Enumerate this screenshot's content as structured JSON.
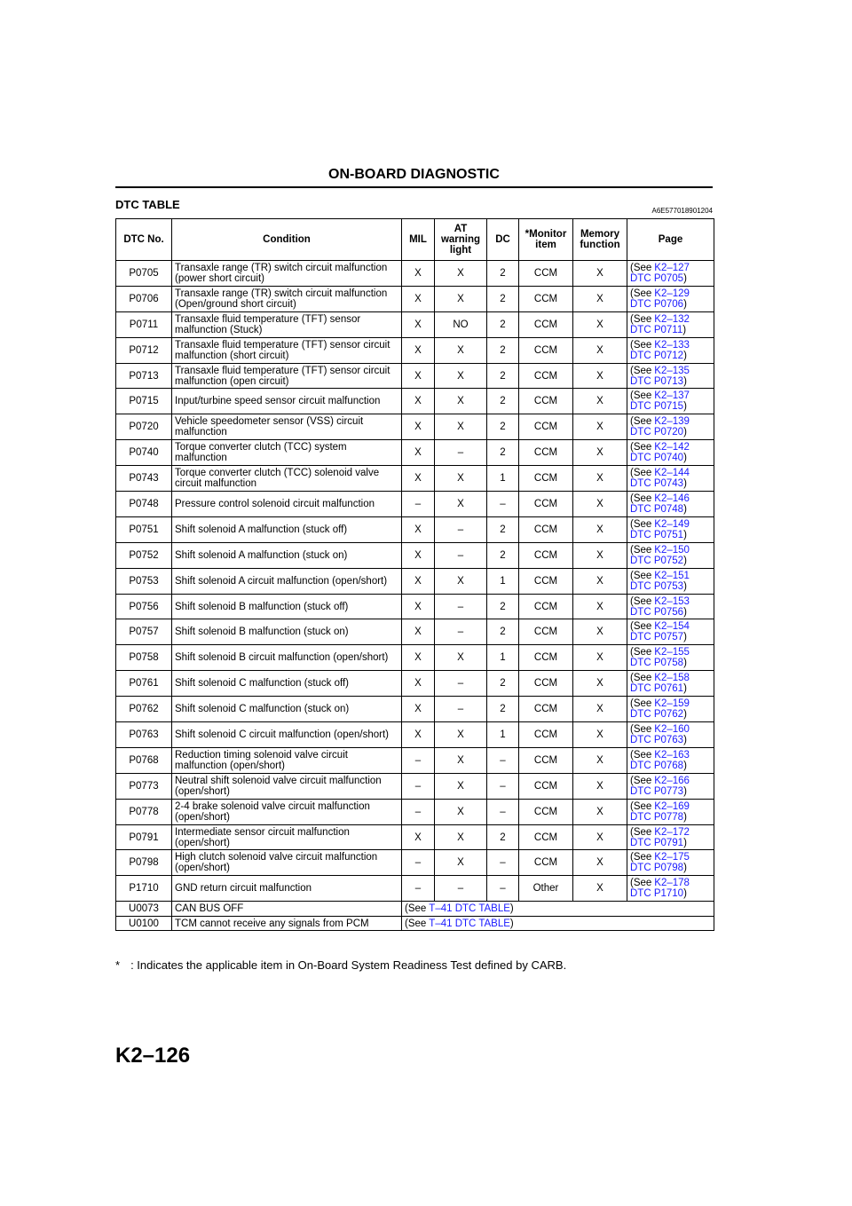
{
  "header": {
    "title": "ON-BOARD DIAGNOSTIC"
  },
  "section": {
    "title": "DTC TABLE",
    "code": "A6E577018901204"
  },
  "table": {
    "columns": [
      "DTC No.",
      "Condition",
      "MIL",
      "AT warning light",
      "DC",
      "*Monitor item",
      "Memory function",
      "Page"
    ],
    "rows": [
      [
        "P0705",
        "Transaxle range (TR) switch circuit malfunction (power short circuit)",
        "X",
        "X",
        "2",
        "CCM",
        "X",
        {
          "pre": "(See",
          "ref": "K2–127",
          "dtc": "DTC P0705",
          "post": ")"
        }
      ],
      [
        "P0706",
        "Transaxle range (TR) switch circuit malfunction (Open/ground short circuit)",
        "X",
        "X",
        "2",
        "CCM",
        "X",
        {
          "pre": "(See",
          "ref": "K2–129",
          "dtc": "DTC P0706",
          "post": ")"
        }
      ],
      [
        "P0711",
        "Transaxle fluid temperature (TFT) sensor malfunction (Stuck)",
        "X",
        "NO",
        "2",
        "CCM",
        "X",
        {
          "pre": "(See",
          "ref": "K2–132",
          "dtc": "DTC P0711",
          "post": ")"
        }
      ],
      [
        "P0712",
        "Transaxle fluid temperature (TFT) sensor circuit malfunction (short circuit)",
        "X",
        "X",
        "2",
        "CCM",
        "X",
        {
          "pre": "(See",
          "ref": "K2–133",
          "dtc": "DTC P0712",
          "post": ")"
        }
      ],
      [
        "P0713",
        "Transaxle fluid temperature (TFT) sensor circuit malfunction (open circuit)",
        "X",
        "X",
        "2",
        "CCM",
        "X",
        {
          "pre": "(See",
          "ref": "K2–135",
          "dtc": "DTC P0713",
          "post": ")"
        }
      ],
      [
        "P0715",
        "Input/turbine speed sensor circuit malfunction",
        "X",
        "X",
        "2",
        "CCM",
        "X",
        {
          "pre": "(See",
          "ref": "K2–137",
          "dtc": "DTC P0715",
          "post": ")"
        }
      ],
      [
        "P0720",
        "Vehicle speedometer sensor (VSS) circuit malfunction",
        "X",
        "X",
        "2",
        "CCM",
        "X",
        {
          "pre": "(See",
          "ref": "K2–139",
          "dtc": "DTC P0720",
          "post": ")"
        }
      ],
      [
        "P0740",
        "Torque converter clutch (TCC) system malfunction",
        "X",
        "–",
        "2",
        "CCM",
        "X",
        {
          "pre": "(See",
          "ref": "K2–142",
          "dtc": "DTC P0740",
          "post": ")"
        }
      ],
      [
        "P0743",
        "Torque converter clutch (TCC) solenoid valve circuit malfunction",
        "X",
        "X",
        "1",
        "CCM",
        "X",
        {
          "pre": "(See",
          "ref": "K2–144",
          "dtc": "DTC P0743",
          "post": ")"
        }
      ],
      [
        "P0748",
        "Pressure control solenoid circuit malfunction",
        "–",
        "X",
        "–",
        "CCM",
        "X",
        {
          "pre": "(See",
          "ref": "K2–146",
          "dtc": "DTC P0748",
          "post": ")"
        }
      ],
      [
        "P0751",
        "Shift solenoid A malfunction (stuck off)",
        "X",
        "–",
        "2",
        "CCM",
        "X",
        {
          "pre": "(See",
          "ref": "K2–149",
          "dtc": "DTC P0751",
          "post": ")"
        }
      ],
      [
        "P0752",
        "Shift solenoid A malfunction (stuck on)",
        "X",
        "–",
        "2",
        "CCM",
        "X",
        {
          "pre": "(See",
          "ref": "K2–150",
          "dtc": "DTC P0752",
          "post": ")"
        }
      ],
      [
        "P0753",
        "Shift solenoid A circuit malfunction (open/short)",
        "X",
        "X",
        "1",
        "CCM",
        "X",
        {
          "pre": "(See",
          "ref": "K2–151",
          "dtc": "DTC P0753",
          "post": ")"
        }
      ],
      [
        "P0756",
        "Shift solenoid B malfunction (stuck off)",
        "X",
        "–",
        "2",
        "CCM",
        "X",
        {
          "pre": "(See",
          "ref": "K2–153",
          "dtc": "DTC P0756",
          "post": ")"
        }
      ],
      [
        "P0757",
        "Shift solenoid B malfunction (stuck on)",
        "X",
        "–",
        "2",
        "CCM",
        "X",
        {
          "pre": "(See",
          "ref": "K2–154",
          "dtc": "DTC P0757",
          "post": ")"
        }
      ],
      [
        "P0758",
        "Shift solenoid B circuit malfunction (open/short)",
        "X",
        "X",
        "1",
        "CCM",
        "X",
        {
          "pre": "(See",
          "ref": "K2–155",
          "dtc": "DTC P0758",
          "post": ")"
        }
      ],
      [
        "P0761",
        "Shift solenoid C malfunction (stuck off)",
        "X",
        "–",
        "2",
        "CCM",
        "X",
        {
          "pre": "(See",
          "ref": "K2–158",
          "dtc": "DTC P0761",
          "post": ")"
        }
      ],
      [
        "P0762",
        "Shift solenoid C malfunction (stuck on)",
        "X",
        "–",
        "2",
        "CCM",
        "X",
        {
          "pre": "(See",
          "ref": "K2–159",
          "dtc": "DTC P0762",
          "post": ")"
        }
      ],
      [
        "P0763",
        "Shift solenoid C circuit malfunction (open/short)",
        "X",
        "X",
        "1",
        "CCM",
        "X",
        {
          "pre": "(See",
          "ref": "K2–160",
          "dtc": "DTC P0763",
          "post": ")"
        }
      ],
      [
        "P0768",
        "Reduction timing solenoid valve circuit malfunction (open/short)",
        "–",
        "X",
        "–",
        "CCM",
        "X",
        {
          "pre": "(See",
          "ref": "K2–163",
          "dtc": "DTC P0768",
          "post": ")"
        }
      ],
      [
        "P0773",
        "Neutral shift solenoid valve circuit malfunction (open/short)",
        "–",
        "X",
        "–",
        "CCM",
        "X",
        {
          "pre": "(See",
          "ref": "K2–166",
          "dtc": "DTC P0773",
          "post": ")"
        }
      ],
      [
        "P0778",
        "2-4 brake solenoid valve circuit malfunction (open/short)",
        "–",
        "X",
        "–",
        "CCM",
        "X",
        {
          "pre": "(See",
          "ref": "K2–169",
          "dtc": "DTC P0778",
          "post": ")"
        }
      ],
      [
        "P0791",
        "Intermediate sensor circuit malfunction (open/short)",
        "X",
        "X",
        "2",
        "CCM",
        "X",
        {
          "pre": "(See",
          "ref": "K2–172",
          "dtc": "DTC P0791",
          "post": ")"
        }
      ],
      [
        "P0798",
        "High clutch solenoid valve circuit malfunction (open/short)",
        "–",
        "X",
        "–",
        "CCM",
        "X",
        {
          "pre": "(See",
          "ref": "K2–175",
          "dtc": "DTC P0798",
          "post": ")"
        }
      ],
      [
        "P1710",
        "GND return circuit malfunction",
        "–",
        "–",
        "–",
        "Other",
        "X",
        {
          "pre": "(See",
          "ref": "K2–178",
          "dtc": "DTC P1710",
          "post": ")"
        }
      ]
    ],
    "note_rows": [
      [
        "U0073",
        "CAN BUS OFF",
        {
          "pre": "(See",
          "link": "T–41 DTC TABLE",
          "post": ")"
        }
      ],
      [
        "U0100",
        "TCM cannot receive any signals from PCM",
        {
          "pre": "(See",
          "link": "T–41 DTC TABLE",
          "post": ")"
        }
      ]
    ]
  },
  "footnote": {
    "mark": "*",
    "text": ": Indicates the applicable item in On-Board System Readiness Test defined by CARB."
  },
  "footer": {
    "page": "K2–126"
  }
}
